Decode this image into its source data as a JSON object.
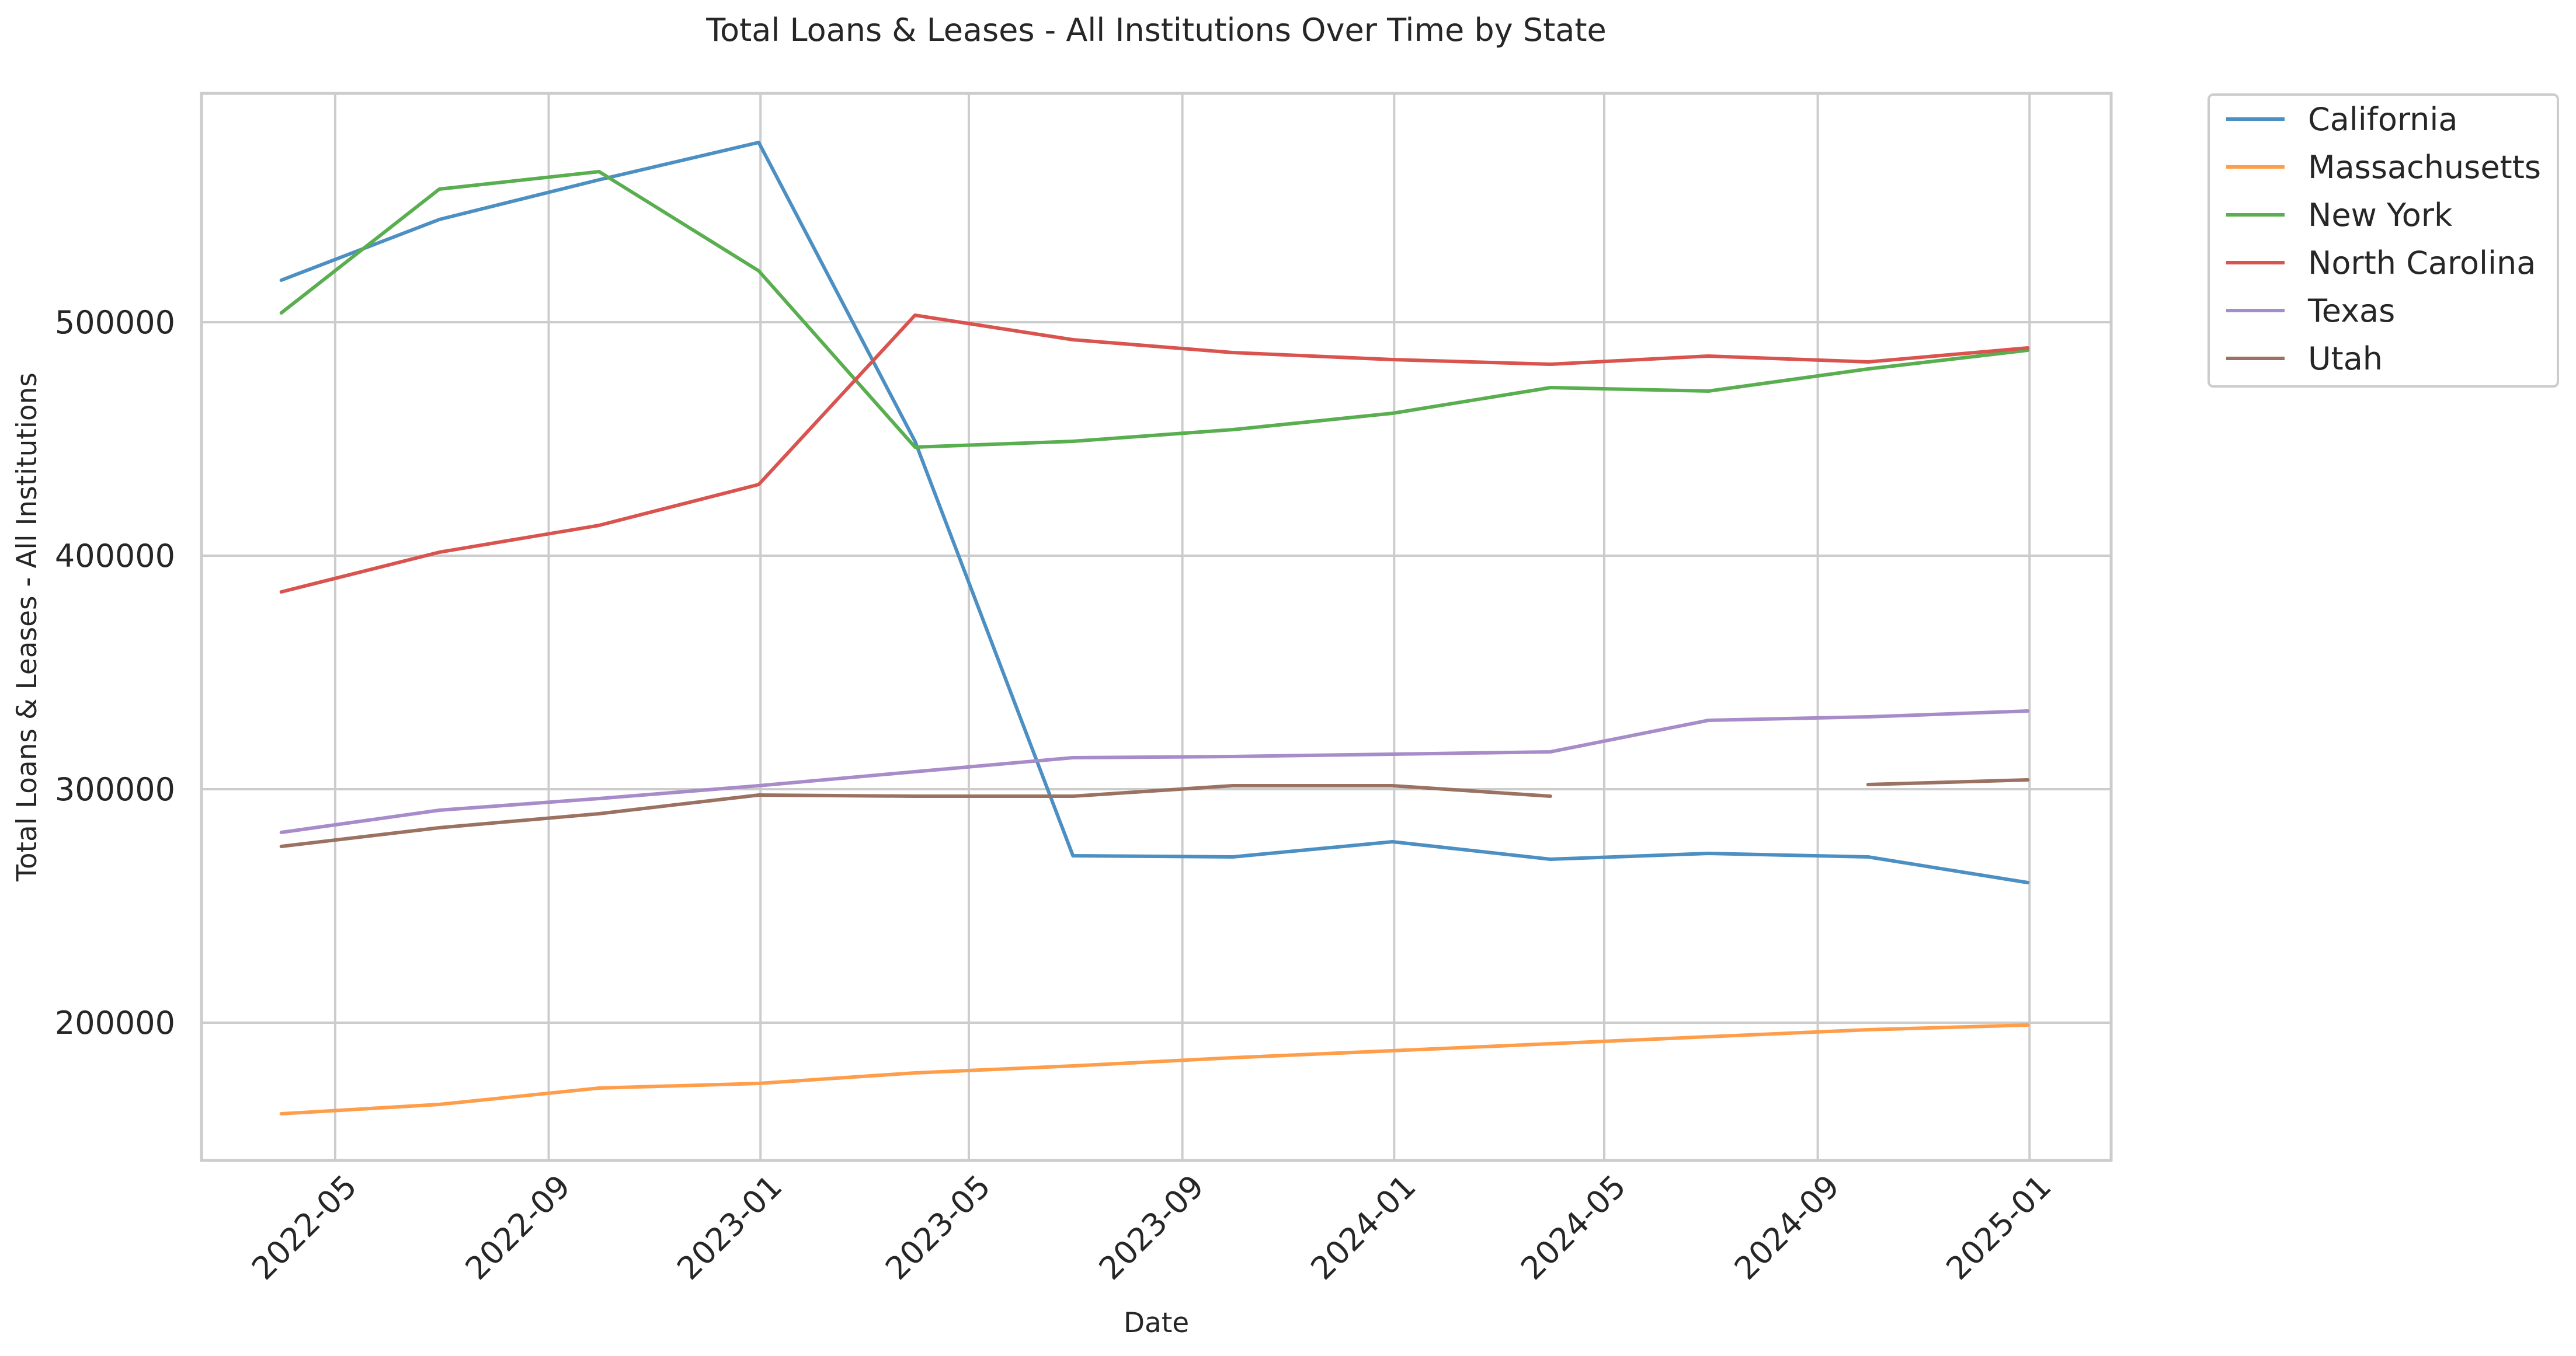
{
  "chart_data": {
    "type": "line",
    "title": "Total Loans & Leases - All Institutions Over Time by State",
    "xlabel": "Date",
    "ylabel": "Total Loans & Leases - All Institutions",
    "x_tick_labels": [
      "2022-05",
      "2022-09",
      "2023-01",
      "2023-05",
      "2023-09",
      "2024-01",
      "2024-05",
      "2024-09",
      "2025-01"
    ],
    "y_tick_labels": [
      "200000",
      "300000",
      "400000",
      "500000"
    ],
    "xlim": [
      "2022-02-13",
      "2025-02-17"
    ],
    "ylim": [
      141000,
      598000
    ],
    "grid": true,
    "legend_position": "outside-top-right",
    "x": [
      "2022-03-31",
      "2022-06-30",
      "2022-09-30",
      "2022-12-31",
      "2023-03-31",
      "2023-06-30",
      "2023-09-30",
      "2023-12-31",
      "2024-03-31",
      "2024-06-30",
      "2024-09-30",
      "2024-12-31"
    ],
    "series": [
      {
        "name": "California",
        "color": "#4c8fc2",
        "values": [
          518000,
          544000,
          561000,
          577000,
          449000,
          271500,
          271000,
          277500,
          270000,
          272500,
          271000,
          260000
        ]
      },
      {
        "name": "Massachusetts",
        "color": "#ff9e4a",
        "values": [
          161000,
          165000,
          172000,
          174000,
          178500,
          181500,
          185000,
          188000,
          191000,
          194000,
          197000,
          199000
        ]
      },
      {
        "name": "New York",
        "color": "#59ae4f",
        "values": [
          504000,
          557000,
          564500,
          522000,
          446500,
          449000,
          454000,
          461000,
          472000,
          470500,
          480000,
          488000
        ]
      },
      {
        "name": "North Carolina",
        "color": "#d9534f",
        "values": [
          384500,
          401500,
          413000,
          430500,
          503000,
          492500,
          487000,
          484000,
          482000,
          485500,
          483000,
          489000
        ]
      },
      {
        "name": "Texas",
        "color": "#a78cc9",
        "values": [
          281500,
          291000,
          296000,
          301500,
          307500,
          313500,
          314000,
          315000,
          316000,
          329500,
          331000,
          333500
        ]
      },
      {
        "name": "Utah",
        "color": "#9b7161",
        "values": [
          275500,
          283500,
          289500,
          297500,
          297000,
          297000,
          301500,
          301500,
          297000,
          null,
          302000,
          304000
        ]
      }
    ]
  }
}
